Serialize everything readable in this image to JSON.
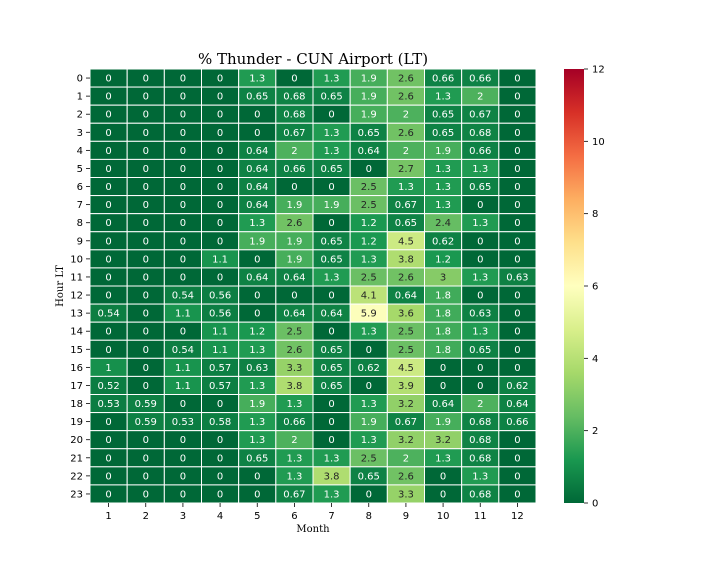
{
  "chart_data": {
    "type": "heatmap",
    "title": "% Thunder - CUN Airport (LT)",
    "xlabel": "Month",
    "ylabel": "Hour LT",
    "x_categories": [
      "1",
      "2",
      "3",
      "4",
      "5",
      "6",
      "7",
      "8",
      "9",
      "10",
      "11",
      "12"
    ],
    "y_categories": [
      "0",
      "1",
      "2",
      "3",
      "4",
      "5",
      "6",
      "7",
      "8",
      "9",
      "10",
      "11",
      "12",
      "13",
      "14",
      "15",
      "16",
      "17",
      "18",
      "19",
      "20",
      "21",
      "22",
      "23"
    ],
    "colormap": "RdYlGn_r",
    "vmin": 0,
    "vmax": 12,
    "colorbar_ticks": [
      0,
      2,
      4,
      6,
      8,
      10,
      12
    ],
    "values": [
      [
        "0",
        "0",
        "0",
        "0",
        "1.3",
        "0",
        "1.3",
        "1.9",
        "2.6",
        "0.66",
        "0.66",
        "0"
      ],
      [
        "0",
        "0",
        "0",
        "0",
        "0.65",
        "0.68",
        "0.65",
        "1.9",
        "2.6",
        "1.3",
        "2",
        "0"
      ],
      [
        "0",
        "0",
        "0",
        "0",
        "0",
        "0.68",
        "0",
        "1.9",
        "2",
        "0.65",
        "0.67",
        "0"
      ],
      [
        "0",
        "0",
        "0",
        "0",
        "0",
        "0.67",
        "1.3",
        "0.65",
        "2.6",
        "0.65",
        "0.68",
        "0"
      ],
      [
        "0",
        "0",
        "0",
        "0",
        "0.64",
        "2",
        "1.3",
        "0.64",
        "2",
        "1.9",
        "0.66",
        "0"
      ],
      [
        "0",
        "0",
        "0",
        "0",
        "0.64",
        "0.66",
        "0.65",
        "0",
        "2.7",
        "1.3",
        "1.3",
        "0"
      ],
      [
        "0",
        "0",
        "0",
        "0",
        "0.64",
        "0",
        "0",
        "2.5",
        "1.3",
        "1.3",
        "0.65",
        "0"
      ],
      [
        "0",
        "0",
        "0",
        "0",
        "0.64",
        "1.9",
        "1.9",
        "2.5",
        "0.67",
        "1.3",
        "0",
        "0"
      ],
      [
        "0",
        "0",
        "0",
        "0",
        "1.3",
        "2.6",
        "0",
        "1.2",
        "0.65",
        "2.4",
        "1.3",
        "0"
      ],
      [
        "0",
        "0",
        "0",
        "0",
        "1.9",
        "1.9",
        "0.65",
        "1.2",
        "4.5",
        "0.62",
        "0",
        "0"
      ],
      [
        "0",
        "0",
        "0",
        "1.1",
        "0",
        "1.9",
        "0.65",
        "1.3",
        "3.8",
        "1.2",
        "0",
        "0"
      ],
      [
        "0",
        "0",
        "0",
        "0",
        "0.64",
        "0.64",
        "1.3",
        "2.5",
        "2.6",
        "3",
        "1.3",
        "0.63"
      ],
      [
        "0",
        "0",
        "0.54",
        "0.56",
        "0",
        "0",
        "0",
        "4.1",
        "0.64",
        "1.8",
        "0",
        "0"
      ],
      [
        "0.54",
        "0",
        "1.1",
        "0.56",
        "0",
        "0.64",
        "0.64",
        "5.9",
        "3.6",
        "1.8",
        "0.63",
        "0"
      ],
      [
        "0",
        "0",
        "0",
        "1.1",
        "1.2",
        "2.5",
        "0",
        "1.3",
        "2.5",
        "1.8",
        "1.3",
        "0"
      ],
      [
        "0",
        "0",
        "0.54",
        "1.1",
        "1.3",
        "2.6",
        "0.65",
        "0",
        "2.5",
        "1.8",
        "0.65",
        "0"
      ],
      [
        "1",
        "0",
        "1.1",
        "0.57",
        "0.63",
        "3.3",
        "0.65",
        "0.62",
        "4.5",
        "0",
        "0",
        "0"
      ],
      [
        "0.52",
        "0",
        "1.1",
        "0.57",
        "1.3",
        "3.8",
        "0.65",
        "0",
        "3.9",
        "0",
        "0",
        "0.62"
      ],
      [
        "0.53",
        "0.59",
        "0",
        "0",
        "1.9",
        "1.3",
        "0",
        "1.3",
        "3.2",
        "0.64",
        "2",
        "0.64"
      ],
      [
        "0",
        "0.59",
        "0.53",
        "0.58",
        "1.3",
        "0.66",
        "0",
        "1.9",
        "0.67",
        "1.9",
        "0.68",
        "0.66"
      ],
      [
        "0",
        "0",
        "0",
        "0",
        "1.3",
        "2",
        "0",
        "1.3",
        "3.2",
        "3.2",
        "0.68",
        "0"
      ],
      [
        "0",
        "0",
        "0",
        "0",
        "0.65",
        "1.3",
        "1.3",
        "2.5",
        "2",
        "1.3",
        "0.68",
        "0"
      ],
      [
        "0",
        "0",
        "0",
        "0",
        "0",
        "1.3",
        "3.8",
        "0.65",
        "2.6",
        "0",
        "1.3",
        "0"
      ],
      [
        "0",
        "0",
        "0",
        "0",
        "0",
        "0.67",
        "1.3",
        "0",
        "3.3",
        "0",
        "0.68",
        "0"
      ]
    ]
  }
}
